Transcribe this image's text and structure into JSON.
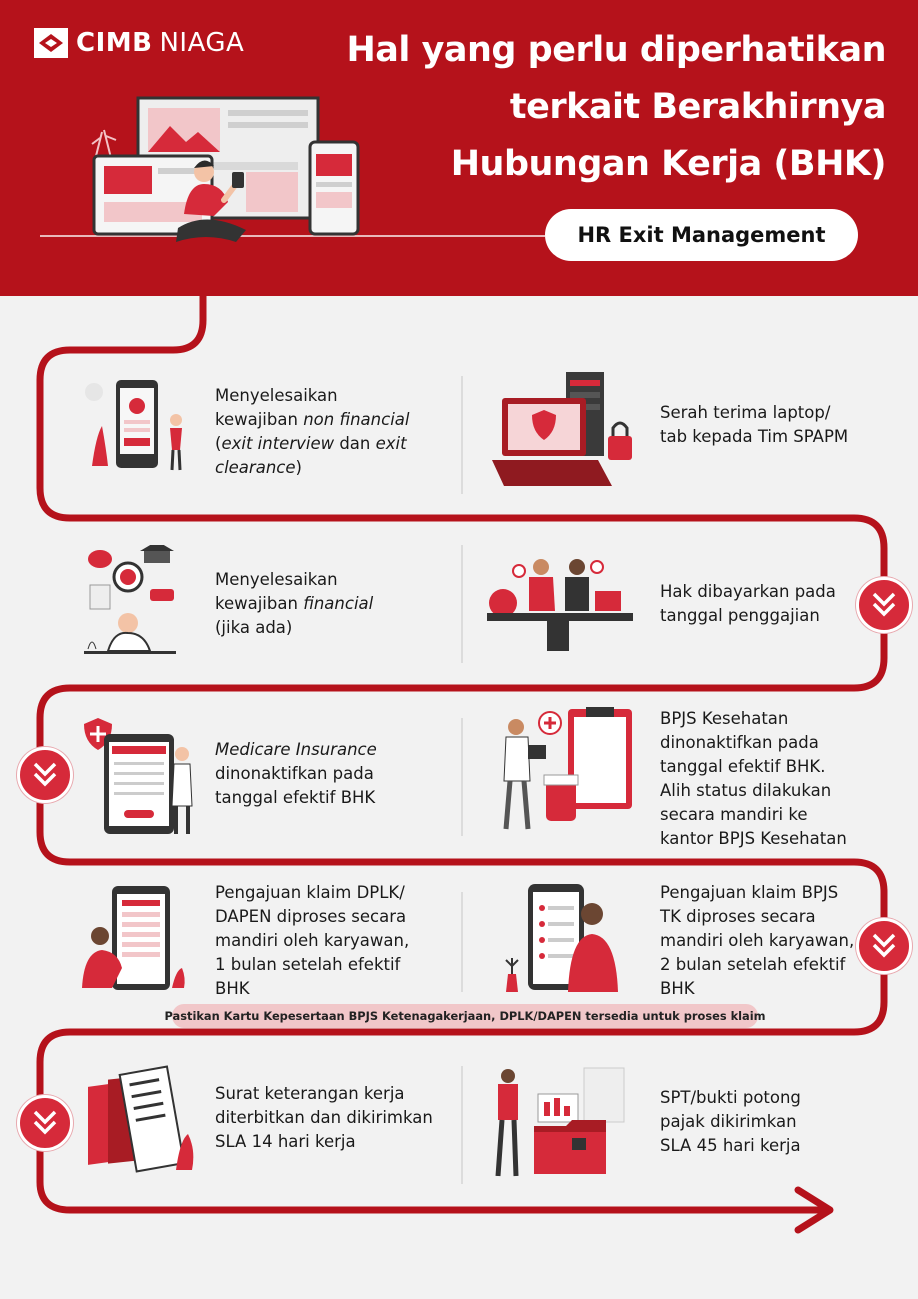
{
  "brand": {
    "logo_word_bold": "CIMB",
    "logo_word_light": "NIAGA"
  },
  "header": {
    "title_lines": [
      "Hal yang perlu diperhatikan",
      "terkait Berakhirnya",
      "Hubungan Kerja (BHK)"
    ],
    "badge": "HR Exit Management"
  },
  "colors": {
    "primary_red": "#b5121b",
    "accent_red": "#d62a3a",
    "background": "#f2f2f2",
    "note_pill": "#f1c7c9"
  },
  "steps": {
    "s1": {
      "l1": "Menyelesaikan",
      "l2a": "kewajiban ",
      "l2b": "non financial",
      "l3a": "(",
      "l3b": "exit interview",
      "l3c": " dan ",
      "l3d": "exit",
      "l4a": "clearance",
      "l4b": ")",
      "icon": "exit-interview-illustration"
    },
    "s2": {
      "l1": "Serah terima laptop/",
      "l2": "tab kepada Tim SPAPM",
      "icon": "laptop-security-illustration"
    },
    "s3": {
      "l1": "Menyelesaikan",
      "l2a": "kewajiban ",
      "l2b": "financial",
      "l3": "(jika ada)",
      "icon": "financial-obligation-illustration"
    },
    "s4": {
      "l1": "Hak dibayarkan pada",
      "l2": "tanggal penggajian",
      "icon": "payment-handshake-illustration"
    },
    "s5": {
      "l1": "Medicare Insurance",
      "l2": "dinonaktifkan pada",
      "l3": "tanggal efektif BHK",
      "icon": "insurance-form-illustration"
    },
    "s6": {
      "l1": "BPJS Kesehatan",
      "l2": "dinonaktifkan pada",
      "l3": "tanggal efektif BHK.",
      "l4": "Alih status  dilakukan",
      "l5": "secara mandiri ke",
      "l6": "kantor BPJS Kesehatan",
      "icon": "health-clipboard-illustration"
    },
    "s7": {
      "l1": "Pengajuan klaim DPLK/",
      "l2": "DAPEN diproses secara",
      "l3": "mandiri oleh karyawan,",
      "l4": "1 bulan setelah efektif",
      "l5": "BHK",
      "icon": "phone-claim-illustration"
    },
    "s8": {
      "l1": "Pengajuan klaim BPJS",
      "l2": "TK diproses secara",
      "l3": "mandiri oleh karyawan,",
      "l4": "2 bulan setelah efektif",
      "l5": "BHK",
      "icon": "mobile-app-illustration"
    },
    "s9": {
      "l1": "Surat keterangan kerja",
      "l2": "diterbitkan dan dikirimkan",
      "l3": "SLA 14 hari kerja",
      "icon": "documents-illustration"
    },
    "s10": {
      "l1": "SPT/bukti potong",
      "l2": "pajak dikirimkan",
      "l3": "SLA 45 hari kerja",
      "icon": "tax-folder-illustration"
    }
  },
  "note": "Pastikan Kartu Kepesertaan BPJS Ketenagakerjaan, DPLK/DAPEN tersedia untuk proses klaim"
}
